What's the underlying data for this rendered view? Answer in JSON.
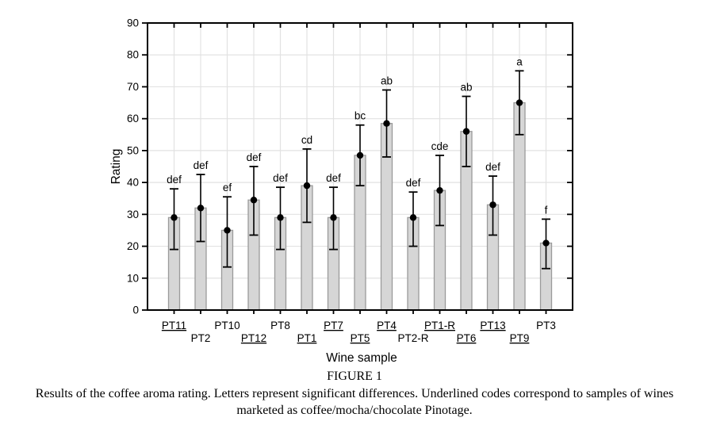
{
  "chart_data": {
    "type": "bar",
    "title": "",
    "xlabel": "Wine sample",
    "ylabel": "Rating",
    "ylim": [
      0,
      90
    ],
    "ytick_step": 10,
    "grid": true,
    "legend": "none",
    "samples": [
      {
        "label": "PT11",
        "value": 29,
        "err_low": 19,
        "err_high": 38,
        "letter": "def",
        "underlined": true
      },
      {
        "label": "PT2",
        "value": 32,
        "err_low": 21.5,
        "err_high": 42.5,
        "letter": "def",
        "underlined": false
      },
      {
        "label": "PT10",
        "value": 25,
        "err_low": 13.5,
        "err_high": 35.5,
        "letter": "ef",
        "underlined": false
      },
      {
        "label": "PT12",
        "value": 34.5,
        "err_low": 23.5,
        "err_high": 45,
        "letter": "def",
        "underlined": true
      },
      {
        "label": "PT8",
        "value": 29,
        "err_low": 19,
        "err_high": 38.5,
        "letter": "def",
        "underlined": false
      },
      {
        "label": "PT1",
        "value": 39,
        "err_low": 27.5,
        "err_high": 50.5,
        "letter": "cd",
        "underlined": true
      },
      {
        "label": "PT7",
        "value": 29,
        "err_low": 19,
        "err_high": 38.5,
        "letter": "def",
        "underlined": true
      },
      {
        "label": "PT5",
        "value": 48.5,
        "err_low": 39,
        "err_high": 58,
        "letter": "bc",
        "underlined": true
      },
      {
        "label": "PT4",
        "value": 58.5,
        "err_low": 48,
        "err_high": 69,
        "letter": "ab",
        "underlined": true
      },
      {
        "label": "PT2-R",
        "value": 29,
        "err_low": 20,
        "err_high": 37,
        "letter": "def",
        "underlined": false
      },
      {
        "label": "PT1-R",
        "value": 37.5,
        "err_low": 26.5,
        "err_high": 48.5,
        "letter": "cde",
        "underlined": true
      },
      {
        "label": "PT6",
        "value": 56,
        "err_low": 45,
        "err_high": 67,
        "letter": "ab",
        "underlined": true
      },
      {
        "label": "PT13",
        "value": 33,
        "err_low": 23.5,
        "err_high": 42,
        "letter": "def",
        "underlined": true
      },
      {
        "label": "PT9",
        "value": 65,
        "err_low": 55,
        "err_high": 75,
        "letter": "a",
        "underlined": true
      },
      {
        "label": "PT3",
        "value": 21,
        "err_low": 13,
        "err_high": 28.5,
        "letter": "f",
        "underlined": false
      }
    ],
    "colors": {
      "bar_fill": "#d6d6d6",
      "bar_border": "#9a9a9a",
      "error_bar": "#000000",
      "grid": "#e2e2e2",
      "axis": "#000000"
    }
  },
  "caption": {
    "title": "FIGURE 1",
    "lines": [
      "Results of the coffee aroma rating. Letters represent significant differences. Underlined codes correspond to samples of wines",
      "marketed as coffee/mocha/chocolate Pinotage."
    ]
  }
}
